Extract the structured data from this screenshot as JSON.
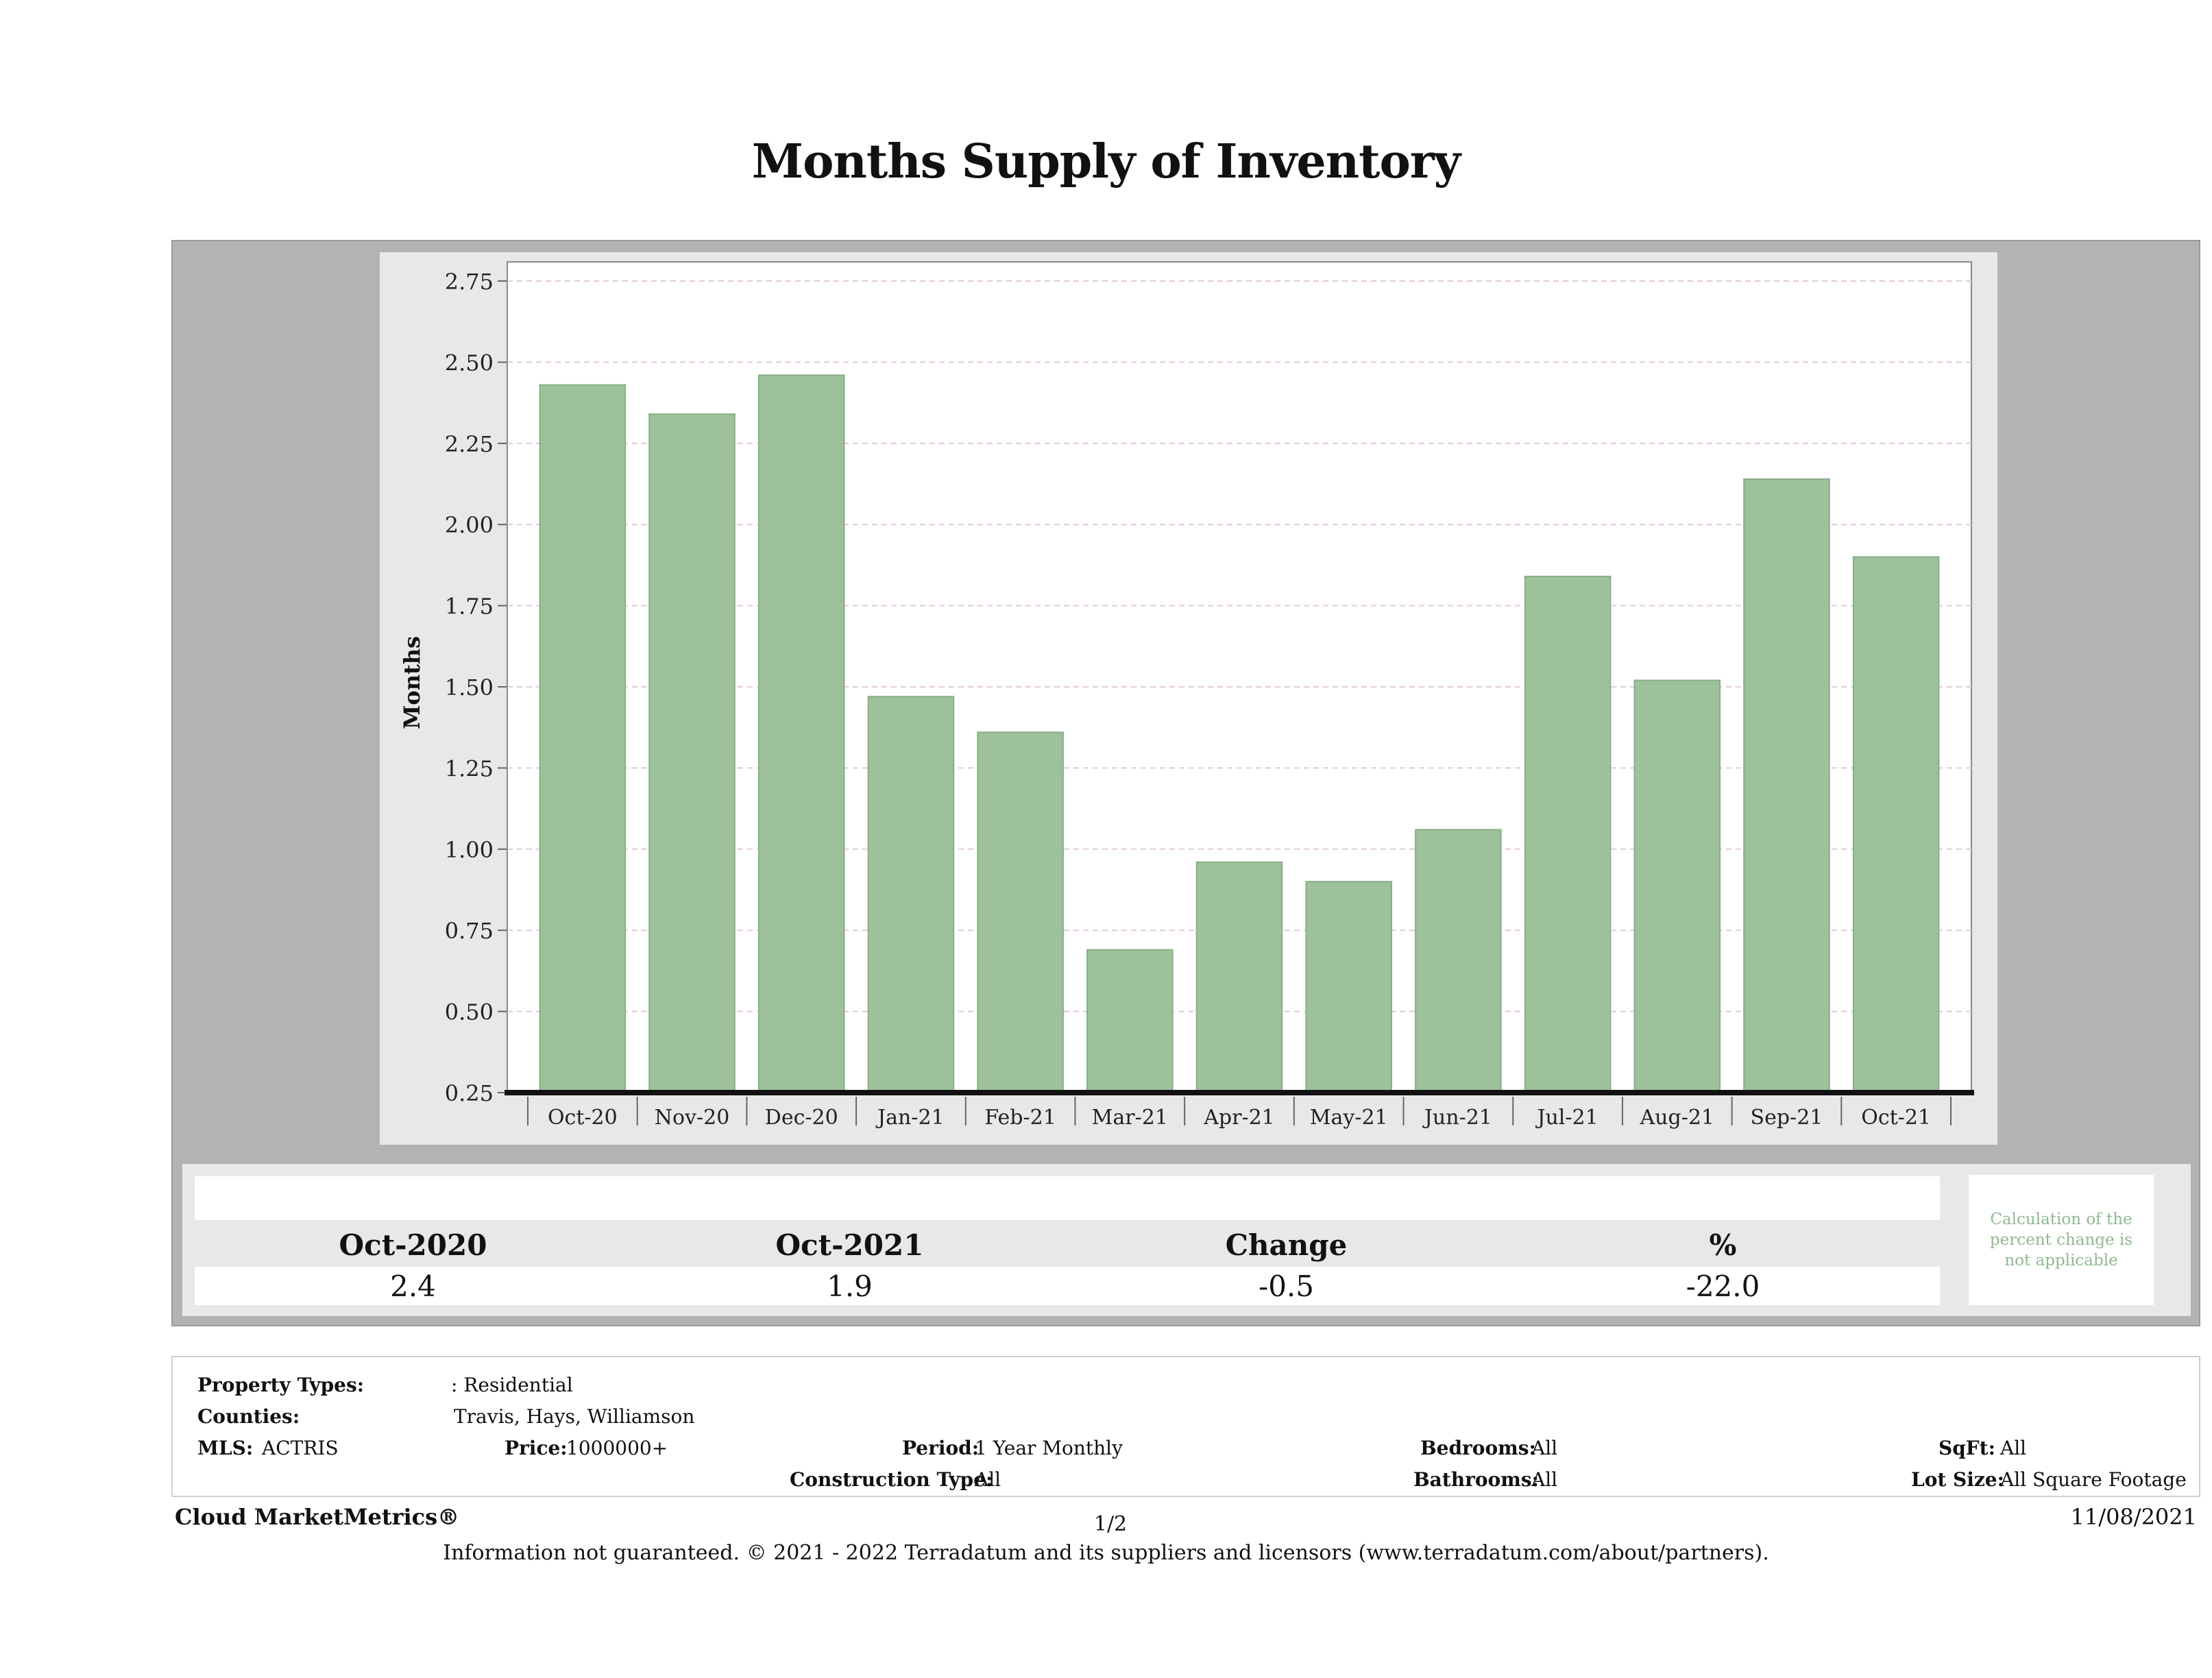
{
  "title": "Months Supply of Inventory",
  "chart_data": {
    "type": "bar",
    "title": "Months Supply of Inventory",
    "ylabel": "Months",
    "xlabel": "",
    "categories": [
      "Oct-20",
      "Nov-20",
      "Dec-20",
      "Jan-21",
      "Feb-21",
      "Mar-21",
      "Apr-21",
      "May-21",
      "Jun-21",
      "Jul-21",
      "Aug-21",
      "Sep-21",
      "Oct-21"
    ],
    "values": [
      2.43,
      2.34,
      2.46,
      1.47,
      1.36,
      0.69,
      0.96,
      0.9,
      1.06,
      1.84,
      1.52,
      2.14,
      1.9
    ],
    "ylim": [
      0.25,
      2.75
    ],
    "yticks": [
      "0.25",
      "0.50",
      "0.75",
      "1.00",
      "1.25",
      "1.50",
      "1.75",
      "2.00",
      "2.25",
      "2.50",
      "2.75"
    ],
    "grid": true,
    "bar_color": "#9dc29b"
  },
  "summary": {
    "headers": [
      "Oct-2020",
      "Oct-2021",
      "Change",
      "%"
    ],
    "values": [
      "2.4",
      "1.9",
      "-0.5",
      "-22.0"
    ],
    "note": "Calculation of the percent change is not applicable"
  },
  "info": {
    "property_types_label": "Property Types:",
    "property_types_value": ": Residential",
    "counties_label": "Counties:",
    "counties_value": "Travis, Hays, Williamson",
    "mls_label": "MLS:",
    "mls_value": "ACTRIS",
    "price_label": "Price:",
    "price_value": "1000000+",
    "period_label": "Period:",
    "period_value": "1 Year Monthly",
    "construction_label": "Construction Type:",
    "construction_value": "All",
    "bedrooms_label": "Bedrooms:",
    "bedrooms_value": "All",
    "bathrooms_label": "Bathrooms:",
    "bathrooms_value": "All",
    "sqft_label": "SqFt:",
    "sqft_value": "All",
    "lotsize_label": "Lot Size:",
    "lotsize_value": "All Square Footage"
  },
  "footer": {
    "brand": "Cloud MarketMetrics®",
    "page": "1/2",
    "date": "11/08/2021",
    "disclaimer": "Information not guaranteed. © 2021 - 2022 Terradatum and its suppliers and licensors (www.terradatum.com/about/partners)."
  }
}
